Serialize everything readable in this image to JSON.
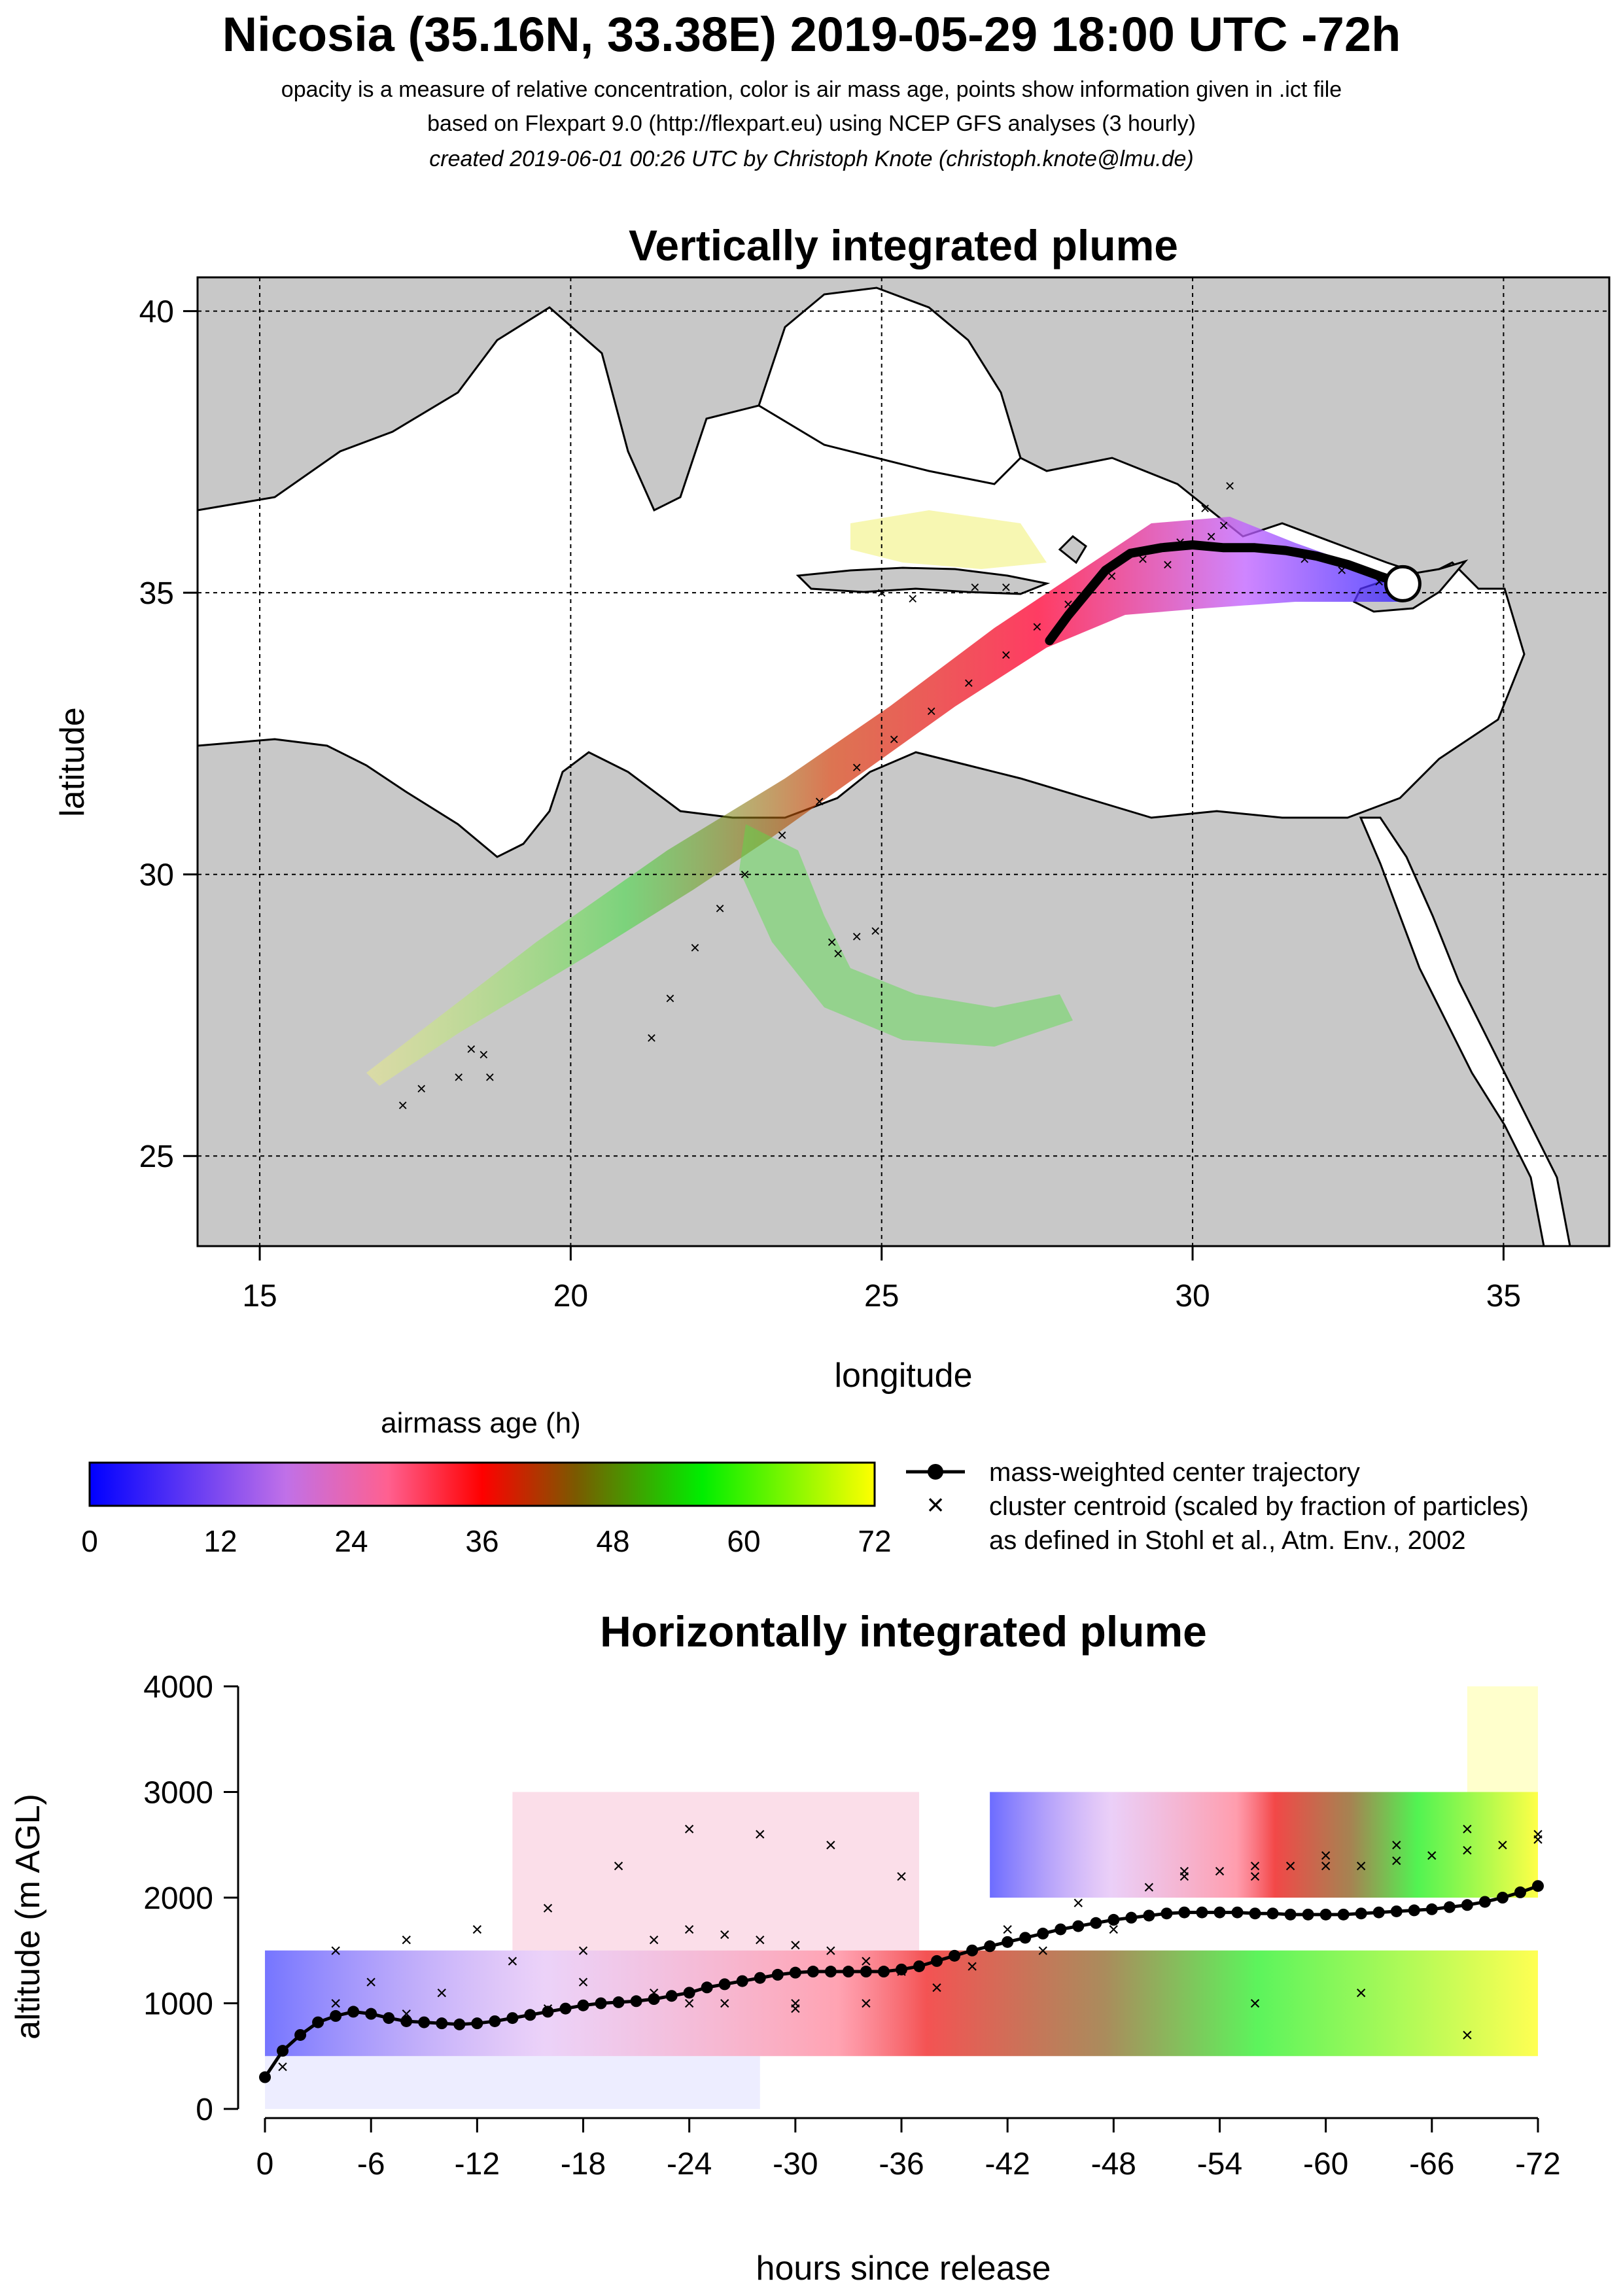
{
  "header": {
    "title": "Nicosia (35.16N, 33.38E) 2019-05-29 18:00 UTC -72h",
    "line1": "opacity is a measure of relative concentration, color is air mass age, points show information given in .ict file",
    "line2": "based on Flexpart 9.0 (http://flexpart.eu) using NCEP GFS analyses (3 hourly)",
    "line3": "created 2019-06-01 00:26 UTC by Christoph Knote (christoph.knote@lmu.de)"
  },
  "colors": {
    "age_scale": [
      "#0000ff",
      "#d070e0",
      "#ff0000",
      "#00ff00",
      "#ffff00"
    ],
    "land": "#c8c8c8",
    "sea": "#ffffff"
  },
  "chart_data": [
    {
      "type": "scatter",
      "title": "Vertically integrated plume",
      "xlabel": "longitude",
      "ylabel": "latitude",
      "xlim": [
        14,
        36.7
      ],
      "ylim": [
        23.4,
        40.6
      ],
      "xticks": [
        15,
        20,
        25,
        30,
        35
      ],
      "yticks": [
        25,
        30,
        35,
        40
      ],
      "grid": true,
      "release_point": {
        "lon": 33.38,
        "lat": 35.16
      },
      "center_trajectory": {
        "name": "mass-weighted center trajectory",
        "lon": [
          33.38,
          33.0,
          32.5,
          32.0,
          31.5,
          31.0,
          30.5,
          30.0,
          29.5,
          29.0,
          28.6,
          28.3,
          28.0,
          27.8,
          27.7
        ],
        "lat": [
          35.16,
          35.3,
          35.5,
          35.65,
          35.75,
          35.8,
          35.8,
          35.85,
          35.8,
          35.7,
          35.4,
          35.0,
          34.6,
          34.3,
          34.15
        ]
      },
      "cluster_centroids": {
        "name": "cluster centroid (scaled by fraction of particles)",
        "lon": [
          33.0,
          32.4,
          31.8,
          31.0,
          30.5,
          30.2,
          29.8,
          29.2,
          28.7,
          28.0,
          27.5,
          27.0,
          26.4,
          25.8,
          25.2,
          24.6,
          24.0,
          23.4,
          22.8,
          22.4,
          22.0,
          21.6,
          21.3,
          25.0,
          25.5,
          26.5,
          27.0,
          24.2,
          24.3,
          24.6,
          24.9,
          18.7,
          18.6,
          18.2,
          17.6,
          17.3,
          18.4,
          30.6,
          30.3,
          29.6
        ],
        "lat": [
          35.2,
          35.4,
          35.6,
          35.8,
          36.2,
          36.5,
          35.9,
          35.6,
          35.3,
          34.8,
          34.4,
          33.9,
          33.4,
          32.9,
          32.4,
          31.9,
          31.3,
          30.7,
          30.0,
          29.4,
          28.7,
          27.8,
          27.1,
          35.0,
          34.9,
          35.1,
          35.1,
          28.8,
          28.6,
          28.9,
          29.0,
          26.4,
          26.8,
          26.4,
          26.2,
          25.9,
          26.9,
          36.9,
          36.0,
          35.5
        ]
      },
      "legend": {
        "colorbar_title": "airmass age (h)",
        "colorbar_ticks": [
          "0",
          "12",
          "24",
          "36",
          "48",
          "60",
          "72"
        ],
        "line_entry": "mass-weighted center trajectory",
        "point_entry": "cluster centroid (scaled by fraction of particles)",
        "point_entry2": "as defined in Stohl et al., Atm. Env., 2002"
      }
    },
    {
      "type": "line",
      "title": "Horizontally integrated plume",
      "xlabel": "hours since release",
      "ylabel": "altitude (m AGL)",
      "xlim": [
        1,
        -73
      ],
      "ylim": [
        0,
        4000
      ],
      "xtick_labels": [
        "0",
        "-6",
        "-12",
        "-18",
        "-24",
        "-30",
        "-36",
        "-42",
        "-48",
        "-54",
        "-60",
        "-66",
        "-72"
      ],
      "ytick_labels": [
        "0",
        "1000",
        "2000",
        "3000",
        "4000"
      ],
      "series": [
        {
          "name": "mass-weighted center trajectory",
          "x": [
            0,
            -1,
            -2,
            -3,
            -4,
            -5,
            -6,
            -7,
            -8,
            -9,
            -10,
            -11,
            -12,
            -13,
            -14,
            -15,
            -16,
            -17,
            -18,
            -19,
            -20,
            -21,
            -22,
            -23,
            -24,
            -25,
            -26,
            -27,
            -28,
            -29,
            -30,
            -31,
            -32,
            -33,
            -34,
            -35,
            -36,
            -37,
            -38,
            -39,
            -40,
            -41,
            -42,
            -43,
            -44,
            -45,
            -46,
            -47,
            -48,
            -49,
            -50,
            -51,
            -52,
            -53,
            -54,
            -55,
            -56,
            -57,
            -58,
            -59,
            -60,
            -61,
            -62,
            -63,
            -64,
            -65,
            -66,
            -67,
            -68,
            -69,
            -70,
            -71,
            -72
          ],
          "y": [
            300,
            550,
            700,
            820,
            880,
            920,
            900,
            860,
            830,
            820,
            810,
            800,
            810,
            830,
            860,
            890,
            920,
            950,
            980,
            1000,
            1010,
            1020,
            1040,
            1070,
            1100,
            1150,
            1180,
            1210,
            1240,
            1270,
            1290,
            1300,
            1300,
            1300,
            1300,
            1300,
            1320,
            1350,
            1400,
            1450,
            1500,
            1540,
            1580,
            1620,
            1660,
            1700,
            1730,
            1760,
            1790,
            1810,
            1830,
            1850,
            1860,
            1860,
            1860,
            1860,
            1850,
            1850,
            1840,
            1840,
            1840,
            1840,
            1850,
            1860,
            1870,
            1880,
            1890,
            1910,
            1930,
            1960,
            2000,
            2050,
            2110
          ]
        },
        {
          "name": "cluster centroid (scaled by fraction of particles)",
          "x": [
            -6,
            -10,
            -14,
            -18,
            -22,
            -24,
            -26,
            -28,
            -30,
            -32,
            -34,
            -36,
            -40,
            -44,
            -48,
            -50,
            -52,
            -54,
            -56,
            -58,
            -60,
            -62,
            -64,
            -66,
            -68,
            -70,
            -72,
            -4,
            -8,
            -12,
            -16,
            -20,
            -24,
            -28,
            -32,
            -36,
            -52,
            -56,
            -60,
            -64,
            -68,
            -72,
            -18,
            -22,
            -26,
            -30,
            -34,
            -38,
            -42,
            -46,
            -8,
            -16,
            -24,
            -30,
            -56,
            -62,
            -68,
            -1,
            -4
          ],
          "y": [
            1200,
            1100,
            1400,
            1500,
            1600,
            1700,
            1650,
            1600,
            1550,
            1500,
            1400,
            1300,
            1350,
            1500,
            1700,
            2100,
            2200,
            2250,
            2200,
            2300,
            2300,
            2300,
            2350,
            2400,
            2450,
            2500,
            2550,
            1500,
            1600,
            1700,
            1900,
            2300,
            2650,
            2600,
            2500,
            2200,
            2250,
            2300,
            2400,
            2500,
            2650,
            2600,
            1200,
            1100,
            1000,
            950,
            1000,
            1150,
            1700,
            1950,
            900,
            950,
            1000,
            1000,
            1000,
            1100,
            700,
            400,
            1000
          ]
        }
      ]
    }
  ]
}
